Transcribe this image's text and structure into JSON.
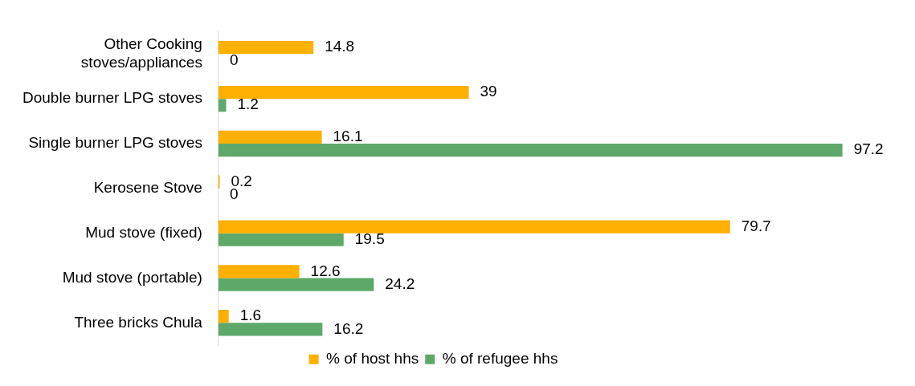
{
  "chart_data": {
    "type": "bar",
    "orientation": "horizontal",
    "categories": [
      "Other Cooking stoves/appliances",
      "Double burner LPG stoves",
      "Single burner LPG stoves",
      "Kerosene Stove",
      "Mud stove (fixed)",
      "Mud stove (portable)",
      "Three bricks Chula"
    ],
    "series": [
      {
        "name": "% of host hhs",
        "color": "#ffb000",
        "values": [
          14.8,
          39,
          16.1,
          0.2,
          79.7,
          12.6,
          1.6
        ]
      },
      {
        "name": "% of refugee hhs",
        "color": "#5ea869",
        "values": [
          0,
          1.2,
          97.2,
          0,
          19.5,
          24.2,
          16.2
        ]
      }
    ],
    "data_labels": true,
    "legend": "bottom",
    "grid": false
  }
}
